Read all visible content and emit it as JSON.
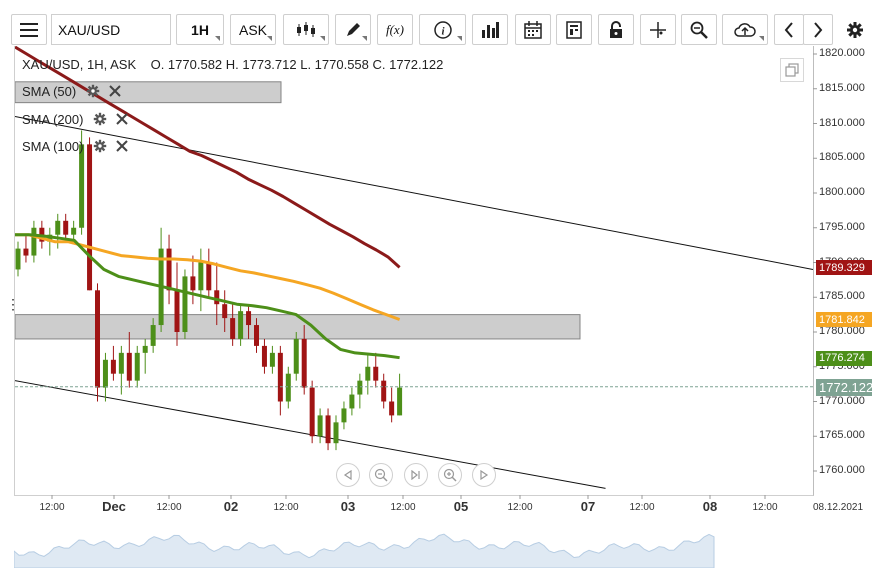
{
  "toolbar": {
    "menu_icon": "hamburger-icon",
    "symbol": "XAU/USD",
    "timeframe": "1H",
    "price_type": "ASK",
    "chart_type_icon": "candlestick-icon",
    "draw_icon": "pencil-icon",
    "function_label": "f(x)",
    "info_icon": "info-icon",
    "volume_icon": "bar-chart-icon",
    "calendar_icon": "calendar-icon",
    "template_icon": "template-icon",
    "lock_icon": "lock-icon",
    "crosshair_icon": "crosshair-icon",
    "zoom_icon": "zoom-icon",
    "cloud_icon": "cloud-upload-icon",
    "prev_icon": "chevron-left-icon",
    "next_icon": "chevron-right-icon",
    "settings_icon": "gear-icon"
  },
  "info": {
    "ohlc": "XAU/USD, 1H, ASK    O. 1770.582 H. 1773.712 L. 1770.558 C. 1772.122"
  },
  "legend": [
    {
      "label": "SMA (50)",
      "color": "#4d8f19"
    },
    {
      "label": "SMA (200)",
      "color": "#8b1a1a"
    },
    {
      "label": "SMA (100)",
      "color": "#f5a623"
    }
  ],
  "y_axis": {
    "ticks": [
      "1820.000",
      "1815.000",
      "1810.000",
      "1805.000",
      "1800.000",
      "1795.000",
      "1790.000",
      "1785.000",
      "1780.000",
      "1775.000",
      "1770.000",
      "1765.000",
      "1760.000"
    ]
  },
  "price_tags": [
    {
      "label": "1789.329",
      "color": "#a01414"
    },
    {
      "label": "1781.842",
      "color": "#f5a623"
    },
    {
      "label": "1776.274",
      "color": "#4d8f19"
    },
    {
      "label": "1772.122",
      "color": "#7fa393"
    }
  ],
  "x_axis": {
    "ticks": [
      {
        "label": "12:00",
        "major": false
      },
      {
        "label": "Dec",
        "major": true
      },
      {
        "label": "12:00",
        "major": false
      },
      {
        "label": "02",
        "major": true
      },
      {
        "label": "12:00",
        "major": false
      },
      {
        "label": "03",
        "major": true
      },
      {
        "label": "12:00",
        "major": false
      },
      {
        "label": "05",
        "major": true
      },
      {
        "label": "12:00",
        "major": false
      },
      {
        "label": "07",
        "major": true
      },
      {
        "label": "12:00",
        "major": false
      },
      {
        "label": "08",
        "major": true
      },
      {
        "label": "12:00",
        "major": false
      },
      {
        "label": "08.12.2021",
        "major": false
      }
    ]
  },
  "colors": {
    "bull": "#4d8f19",
    "bear": "#a01414",
    "sma200": "#8b1a1a",
    "sma100": "#f5a623",
    "sma50": "#4d8f19",
    "last_price_line": "#7fa393"
  },
  "chart_data": {
    "type": "candlestick",
    "ylim": [
      1757.5,
      1822
    ],
    "last_price": 1772.122,
    "candles": [
      [
        1789,
        1793,
        1788,
        1792
      ],
      [
        1792,
        1794,
        1790,
        1791
      ],
      [
        1791,
        1796,
        1790,
        1795
      ],
      [
        1795,
        1796,
        1792,
        1793
      ],
      [
        1793,
        1795,
        1791,
        1794
      ],
      [
        1794,
        1797,
        1792,
        1796
      ],
      [
        1796,
        1797,
        1793,
        1794
      ],
      [
        1794,
        1796,
        1793,
        1795
      ],
      [
        1795,
        1809,
        1794,
        1807
      ],
      [
        1807,
        1808,
        1786,
        1786
      ],
      [
        1786,
        1787,
        1770,
        1772
      ],
      [
        1772,
        1777,
        1770,
        1776
      ],
      [
        1776,
        1778,
        1773,
        1774
      ],
      [
        1774,
        1778,
        1771,
        1777
      ],
      [
        1777,
        1780,
        1772,
        1773
      ],
      [
        1773,
        1778,
        1772,
        1777
      ],
      [
        1777,
        1779,
        1774,
        1778
      ],
      [
        1778,
        1782,
        1777,
        1781
      ],
      [
        1781,
        1795,
        1780,
        1792
      ],
      [
        1792,
        1794,
        1784,
        1786
      ],
      [
        1786,
        1790,
        1778,
        1780
      ],
      [
        1780,
        1789,
        1779,
        1788
      ],
      [
        1788,
        1791,
        1784,
        1786
      ],
      [
        1786,
        1792,
        1783,
        1790
      ],
      [
        1790,
        1792,
        1785,
        1786
      ],
      [
        1786,
        1790,
        1781,
        1784
      ],
      [
        1784,
        1786,
        1780,
        1782
      ],
      [
        1782,
        1784,
        1778,
        1779
      ],
      [
        1779,
        1784,
        1778,
        1783
      ],
      [
        1783,
        1784,
        1779,
        1781
      ],
      [
        1781,
        1782,
        1777,
        1778
      ],
      [
        1778,
        1779,
        1774,
        1775
      ],
      [
        1775,
        1778,
        1774,
        1777
      ],
      [
        1777,
        1778,
        1768,
        1770
      ],
      [
        1770,
        1775,
        1769,
        1774
      ],
      [
        1774,
        1780,
        1773,
        1779
      ],
      [
        1779,
        1781,
        1771,
        1772
      ],
      [
        1772,
        1773,
        1764,
        1765
      ],
      [
        1765,
        1769,
        1764,
        1768
      ],
      [
        1768,
        1769,
        1763,
        1764
      ],
      [
        1764,
        1768,
        1763,
        1767
      ],
      [
        1767,
        1770,
        1766,
        1769
      ],
      [
        1769,
        1772,
        1768,
        1771
      ],
      [
        1771,
        1774,
        1769,
        1773
      ],
      [
        1773,
        1777,
        1771,
        1775
      ],
      [
        1775,
        1777,
        1772,
        1773
      ],
      [
        1773,
        1774,
        1769,
        1770
      ],
      [
        1770,
        1772,
        1767,
        1768
      ],
      [
        1768,
        1774,
        1768,
        1772
      ]
    ],
    "sma200": [
      1821,
      1820,
      1819,
      1818,
      1817,
      1816,
      1815,
      1814,
      1813,
      1812,
      1811,
      1810,
      1809,
      1808,
      1807,
      1806,
      1805.4,
      1804.6,
      1803.8,
      1803,
      1802,
      1801.2,
      1800.4,
      1799.5,
      1798.5,
      1797.5,
      1796.5,
      1795.5,
      1794.6,
      1793.7,
      1792.7,
      1791.8,
      1790.8,
      1789.3
    ],
    "sma100": [
      1794,
      1794,
      1793.5,
      1793,
      1793,
      1792.5,
      1792,
      1791.5,
      1791,
      1790.8,
      1790.6,
      1790.5,
      1790.5,
      1790.4,
      1790.2,
      1789.8,
      1789.3,
      1788.8,
      1788.5,
      1788.1,
      1787.7,
      1787.3,
      1786.8,
      1786.3,
      1785.6,
      1784.8,
      1784,
      1783.2,
      1782.5,
      1781.8
    ],
    "sma50": [
      1794,
      1794,
      1793.8,
      1793.5,
      1793.2,
      1791,
      1789,
      1788,
      1787.5,
      1787,
      1786.5,
      1786,
      1785.5,
      1785,
      1784.5,
      1784,
      1783.8,
      1783.5,
      1783,
      1782.5,
      1781,
      1779,
      1777.5,
      1777,
      1776.8,
      1776.6,
      1776.3
    ]
  },
  "annotations": {
    "sr_zones": [
      {
        "from": 1813,
        "to": 1816
      },
      {
        "from": 1779,
        "to": 1782.5
      }
    ],
    "trend_lines": [
      {
        "from": [
          1811,
          0
        ],
        "to": [
          1789,
          1
        ]
      },
      {
        "from": [
          1773,
          0
        ],
        "to": [
          1757.5,
          0.74
        ]
      }
    ]
  }
}
